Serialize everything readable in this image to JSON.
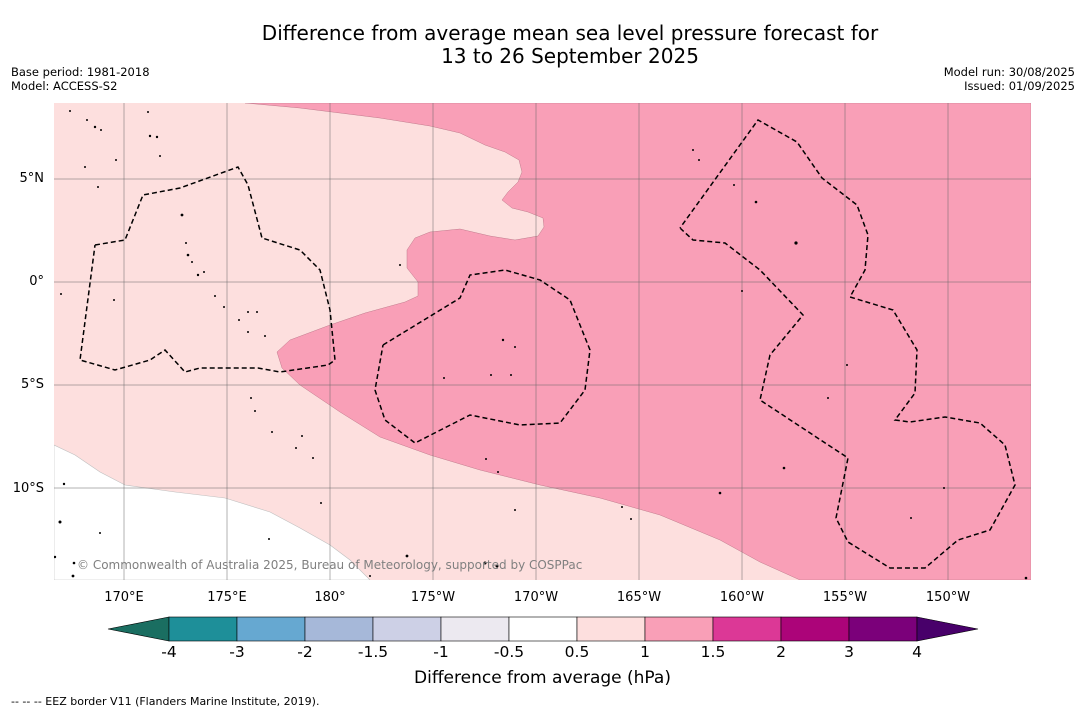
{
  "title_line1": "Difference from average mean sea level pressure forecast for",
  "title_line2": "13 to 26 September 2025",
  "meta_left": [
    "Base period: 1981-2018",
    "Model: ACCESS-S2"
  ],
  "meta_right": [
    "Model run: 30/08/2025",
    "Issued: 01/09/2025"
  ],
  "lat_ticks": [
    "5°N",
    "0°",
    "5°S",
    "10°S"
  ],
  "lon_ticks": [
    "170°E",
    "175°E",
    "180°",
    "175°W",
    "170°W",
    "165°W",
    "160°W",
    "155°W",
    "150°W"
  ],
  "copyright": "© Commonwealth of Australia 2025, Bureau of Meteorology, supported by COSPPac",
  "colorbar": {
    "labels": [
      "-4",
      "-3",
      "-2",
      "-1.5",
      "-1",
      "-0.5",
      "0.5",
      "1",
      "1.5",
      "2",
      "3",
      "4"
    ],
    "colors": [
      "#1a6e61",
      "#1e8f99",
      "#66a8d1",
      "#a6b8d9",
      "#cdd0e6",
      "#ece9f0",
      "#ffffff",
      "#fddfde",
      "#f99fb7",
      "#dc3896",
      "#ac0479",
      "#7b007a",
      "#48006a"
    ],
    "title": "Difference from average (hPa)"
  },
  "legend_note": "--  --  -- EEZ border V11 (Flanders Marine Institute, 2019).",
  "fill_colors": {
    "band_0_5_to_1": "#fddfde",
    "band_1_to_1_5": "#f99fb7",
    "neutral": "#ffffff"
  }
}
